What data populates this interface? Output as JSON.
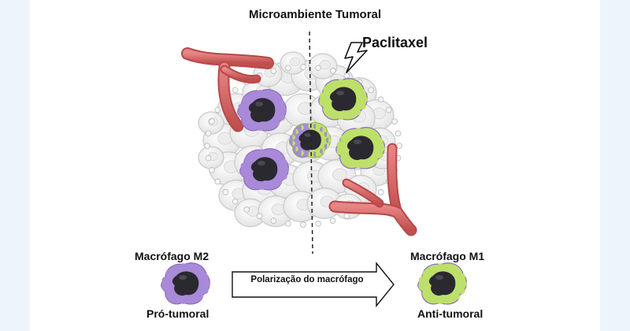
{
  "diagram": {
    "title": "Microambiente Tumoral",
    "drug_label": "Paclitaxel",
    "left_macrophage": {
      "name": "Macrófago M2",
      "role": "Pró-tumoral",
      "color": "#a88ad8"
    },
    "right_macrophage": {
      "name": "Macrófago M1",
      "role": "Anti-tumoral",
      "color": "#bde06a"
    },
    "arrow_label": "Polarização do macrófago",
    "colors": {
      "vessel": "#d86a6a",
      "nucleus": "#2b2930",
      "cell": "#f3f3f3",
      "cell_outline": "#c9c9c9"
    },
    "icons": [
      "lightning-bolt-icon",
      "blood-vessel-icon",
      "macrophage-icon",
      "tumor-cell-icon"
    ]
  }
}
